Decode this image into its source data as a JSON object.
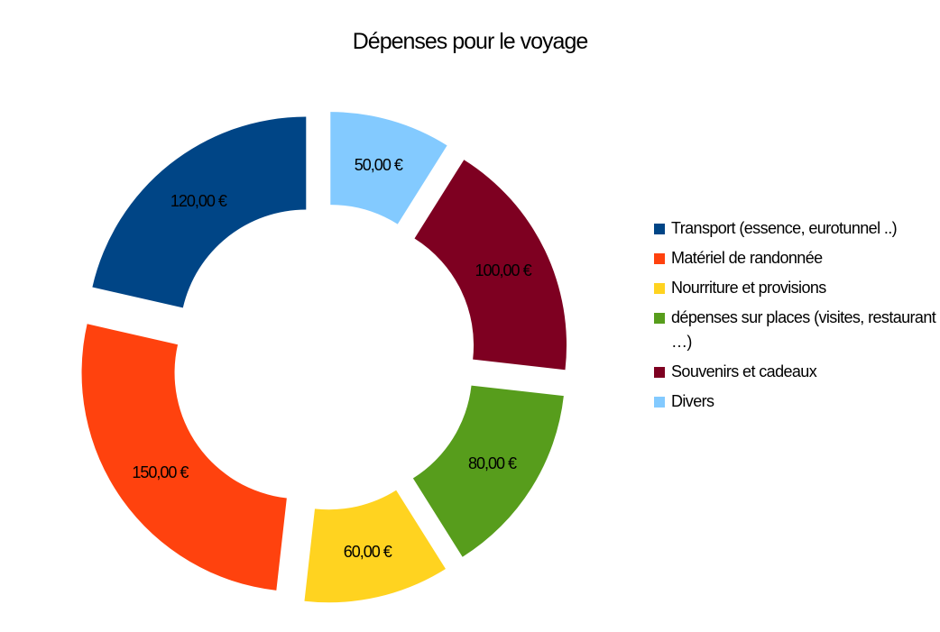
{
  "chart_data": {
    "type": "pie",
    "title": "Dépenses pour le voyage",
    "categories": [
      "Transport (essence, eurotunnel ..)",
      "Matériel de randonnée",
      "Nourriture et provisions",
      "dépenses sur places (visites, restaurant …)",
      "Souvenirs et cadeaux",
      "Divers"
    ],
    "values": [
      120,
      150,
      60,
      80,
      100,
      50
    ],
    "value_labels": [
      "120,00 €",
      "150,00 €",
      "60,00 €",
      "80,00 €",
      "100,00 €",
      "50,00 €"
    ],
    "colors": [
      "#004586",
      "#ff420e",
      "#ffd320",
      "#579d1c",
      "#7e0021",
      "#83caff"
    ],
    "legend_position": "right"
  }
}
